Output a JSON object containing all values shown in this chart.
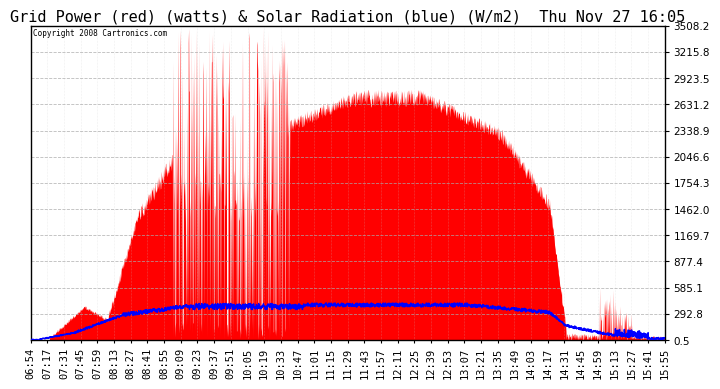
{
  "title": "Grid Power (red) (watts) & Solar Radiation (blue) (W/m2)  Thu Nov 27 16:05",
  "copyright_text": "Copyright 2008 Cartronics.com",
  "yticks": [
    0.5,
    292.8,
    585.1,
    877.4,
    1169.7,
    1462.0,
    1754.3,
    2046.6,
    2338.9,
    2631.2,
    2923.5,
    3215.8,
    3508.2
  ],
  "ylim": [
    0.5,
    3508.2
  ],
  "background_color": "#ffffff",
  "plot_bg_color": "#ffffff",
  "grid_color": "#aaaaaa",
  "red_color": "#ff0000",
  "blue_color": "#0000ff",
  "title_fontsize": 11,
  "tick_fontsize": 7.5,
  "xtick_labels": [
    "06:54",
    "07:17",
    "07:31",
    "07:45",
    "07:59",
    "08:13",
    "08:27",
    "08:41",
    "08:55",
    "09:09",
    "09:23",
    "09:37",
    "09:51",
    "10:05",
    "10:19",
    "10:33",
    "10:47",
    "11:01",
    "11:15",
    "11:29",
    "11:43",
    "11:57",
    "12:11",
    "12:25",
    "12:39",
    "12:53",
    "13:07",
    "13:21",
    "13:35",
    "13:49",
    "14:03",
    "14:17",
    "14:31",
    "14:45",
    "14:59",
    "15:13",
    "15:27",
    "15:41",
    "15:55"
  ]
}
